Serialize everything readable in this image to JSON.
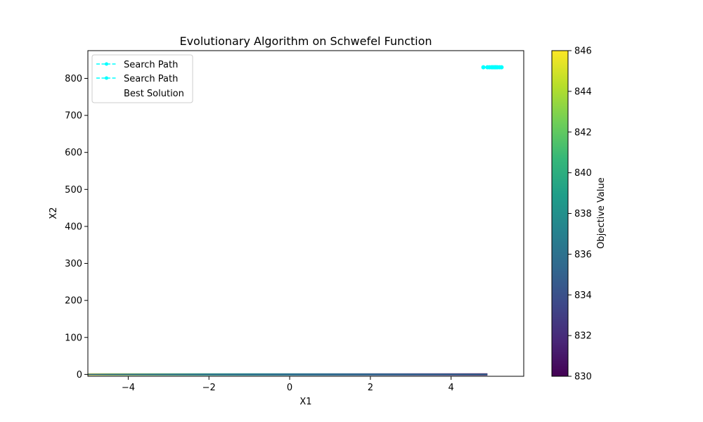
{
  "chart_data": {
    "type": "contour",
    "title": "Evolutionary Algorithm on Schwefel Function",
    "xlabel": "X1",
    "ylabel": "X2",
    "xlim": [
      -5,
      5.8
    ],
    "ylim": [
      -5,
      875
    ],
    "xticks": [
      -4,
      -2,
      0,
      2,
      4
    ],
    "yticks": [
      0,
      100,
      200,
      300,
      400,
      500,
      600,
      700,
      800
    ],
    "grid": false,
    "legend": {
      "placement": "top-left",
      "entries": [
        {
          "label": "Search Path",
          "style": "dashed-line-with-dots",
          "color": "#00ffff"
        },
        {
          "label": "Search Path",
          "style": "dashed-line-with-dots",
          "color": "#00ffff"
        },
        {
          "label": "Best Solution",
          "style": "none",
          "color": "#ff0000"
        }
      ]
    },
    "series": [
      {
        "name": "Search Path",
        "color": "#00ffff",
        "x": [
          4.8,
          4.9,
          4.95,
          5.0,
          5.02,
          5.05,
          5.08,
          5.1,
          5.12,
          5.15,
          5.2,
          5.25
        ],
        "y": [
          830,
          830,
          830,
          830,
          830,
          830,
          830,
          830,
          830,
          830,
          830,
          830
        ]
      }
    ],
    "contour_band": {
      "x_range": [
        -5,
        4.9
      ],
      "y_range": [
        -3,
        3
      ],
      "value_at_x_min": 845,
      "value_at_x_max": 830
    },
    "colorbar": {
      "label": "Objective Value",
      "min": 830,
      "max": 846,
      "ticks": [
        830,
        832,
        834,
        836,
        838,
        840,
        842,
        844,
        846
      ],
      "colormap": "viridis"
    }
  }
}
